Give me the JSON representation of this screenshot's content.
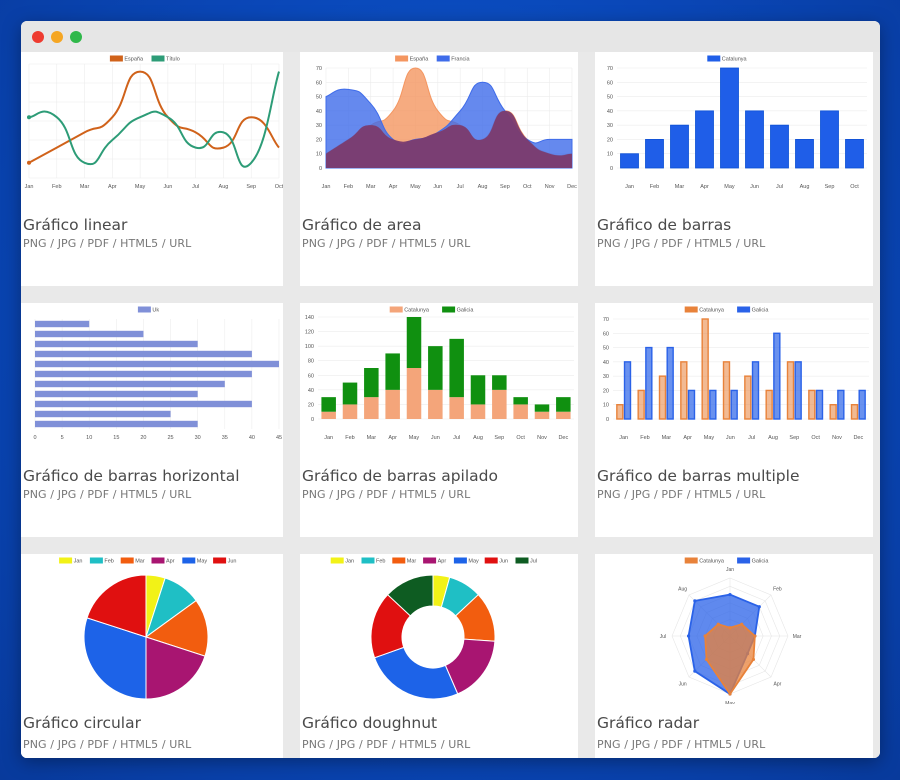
{
  "window": {
    "controls": [
      {
        "name": "close",
        "color": "#ee3b30"
      },
      {
        "name": "minimize",
        "color": "#f5a623"
      },
      {
        "name": "maximize",
        "color": "#2fb84a"
      }
    ]
  },
  "export_links": [
    "PNG",
    "JPG",
    "PDF",
    "HTML5",
    "URL"
  ],
  "cards": [
    {
      "title": "Gráfico linear"
    },
    {
      "title": "Gráfico de area"
    },
    {
      "title": "Gráfico de barras"
    },
    {
      "title": "Gráfico de barras horizontal"
    },
    {
      "title": "Gráfico de barras apilado"
    },
    {
      "title": "Gráfico de barras multiple"
    },
    {
      "title": "Gráfico circular"
    },
    {
      "title": "Gráfico doughnut"
    },
    {
      "title": "Gráfico radar"
    }
  ],
  "colors": {
    "espana": "#e2711d",
    "titulo": "#2d9c77",
    "francia": "#3a6de0",
    "catalunya": "#1f5ee8",
    "galicia": "#109010",
    "uk": "#8090d8"
  },
  "chart_data": [
    {
      "type": "line",
      "categories": [
        "Jan",
        "Feb",
        "Mar",
        "Apr",
        "May",
        "Jun",
        "Jul",
        "Aug",
        "Sep",
        "Oct"
      ],
      "series": [
        {
          "name": "España",
          "color": "#d0621a",
          "values": [
            10,
            20,
            30,
            40,
            70,
            40,
            30,
            20,
            40,
            20
          ]
        },
        {
          "name": "Título",
          "color": "#2d9c77",
          "values": [
            40,
            40,
            10,
            25,
            40,
            40,
            20,
            30,
            10,
            70
          ]
        }
      ],
      "ylim": [
        0,
        75
      ]
    },
    {
      "type": "area",
      "categories": [
        "Jan",
        "Feb",
        "Mar",
        "Apr",
        "May",
        "Jun",
        "Jul",
        "Aug",
        "Sep",
        "Oct",
        "Nov",
        "Dec"
      ],
      "series": [
        {
          "name": "España",
          "color": "#f49660",
          "values": [
            10,
            20,
            30,
            40,
            70,
            40,
            30,
            20,
            40,
            20,
            10,
            10
          ]
        },
        {
          "name": "Francia",
          "color": "#3f6cea",
          "values": [
            50,
            55,
            45,
            20,
            20,
            25,
            40,
            60,
            40,
            20,
            20,
            20
          ]
        }
      ],
      "ylim": [
        0,
        70
      ],
      "yticks": [
        0,
        10,
        20,
        30,
        40,
        50,
        60,
        70
      ]
    },
    {
      "type": "bar",
      "categories": [
        "Jan",
        "Feb",
        "Mar",
        "Apr",
        "May",
        "Jun",
        "Jul",
        "Aug",
        "Sep",
        "Oct"
      ],
      "series": [
        {
          "name": "Catalunya",
          "color": "#1f5ee8",
          "values": [
            10,
            20,
            30,
            40,
            70,
            40,
            30,
            20,
            40,
            20
          ]
        }
      ],
      "ylim": [
        0,
        70
      ],
      "yticks": [
        0,
        10,
        20,
        30,
        40,
        50,
        60,
        70
      ]
    },
    {
      "type": "bar",
      "orientation": "horizontal",
      "series": [
        {
          "name": "Uk",
          "color": "#8090d8",
          "values": [
            10,
            20,
            30,
            40,
            45,
            40,
            35,
            30,
            40,
            25,
            30
          ]
        }
      ],
      "xlim": [
        0,
        45
      ],
      "xticks": [
        0,
        5,
        10,
        15,
        20,
        25,
        30,
        35,
        40,
        45
      ]
    },
    {
      "type": "bar",
      "stacked": true,
      "categories": [
        "Jan",
        "Feb",
        "Mar",
        "Apr",
        "May",
        "Jun",
        "Jul",
        "Aug",
        "Sep",
        "Oct",
        "Nov",
        "Dec"
      ],
      "series": [
        {
          "name": "Catalunya",
          "color": "#f4a57a",
          "values": [
            10,
            20,
            30,
            40,
            70,
            40,
            30,
            20,
            40,
            20,
            10,
            10
          ]
        },
        {
          "name": "Galicia",
          "color": "#109010",
          "values": [
            20,
            30,
            40,
            50,
            70,
            60,
            80,
            40,
            20,
            10,
            10,
            20
          ]
        }
      ],
      "ylim": [
        0,
        140
      ],
      "yticks": [
        0,
        20,
        40,
        60,
        80,
        100,
        120,
        140
      ]
    },
    {
      "type": "bar",
      "categories": [
        "Jan",
        "Feb",
        "Mar",
        "Apr",
        "May",
        "Jun",
        "Jul",
        "Aug",
        "Sep",
        "Oct",
        "Nov",
        "Dec"
      ],
      "series": [
        {
          "name": "Catalunya",
          "color": "#e8823a",
          "values": [
            10,
            20,
            30,
            40,
            70,
            40,
            30,
            20,
            40,
            20,
            10,
            10
          ]
        },
        {
          "name": "Galicia",
          "color": "#2a62e8",
          "values": [
            40,
            50,
            50,
            20,
            20,
            20,
            40,
            60,
            40,
            20,
            20,
            20
          ]
        }
      ],
      "ylim": [
        0,
        70
      ],
      "yticks": [
        0,
        10,
        20,
        30,
        40,
        50,
        60,
        70
      ]
    },
    {
      "type": "pie",
      "series": [
        {
          "name": "Jan",
          "color": "#f2f217",
          "value": 5
        },
        {
          "name": "Feb",
          "color": "#1fbfc5",
          "value": 10
        },
        {
          "name": "Mar",
          "color": "#f25d0f",
          "value": 15
        },
        {
          "name": "Apr",
          "color": "#a81571",
          "value": 20
        },
        {
          "name": "May",
          "color": "#1d63e8",
          "value": 30
        },
        {
          "name": "Jun",
          "color": "#e01010",
          "value": 20
        }
      ]
    },
    {
      "type": "doughnut",
      "series": [
        {
          "name": "Jan",
          "color": "#f2f217",
          "value": 5
        },
        {
          "name": "Feb",
          "color": "#1fbfc5",
          "value": 10
        },
        {
          "name": "Mar",
          "color": "#f25d0f",
          "value": 15
        },
        {
          "name": "Apr",
          "color": "#a81571",
          "value": 20
        },
        {
          "name": "May",
          "color": "#1d63e8",
          "value": 30
        },
        {
          "name": "Jun",
          "color": "#e01010",
          "value": 20
        },
        {
          "name": "Jul",
          "color": "#0e5c22",
          "value": 15
        }
      ]
    },
    {
      "type": "radar",
      "categories": [
        "Jan",
        "Feb",
        "Mar",
        "Apr",
        "May",
        "Jun",
        "Jul",
        "Aug"
      ],
      "series": [
        {
          "name": "Catalunya",
          "color": "#e8823a",
          "values": [
            10,
            20,
            30,
            40,
            70,
            40,
            30,
            20
          ]
        },
        {
          "name": "Galicia",
          "color": "#2a62e8",
          "values": [
            50,
            50,
            30,
            30,
            70,
            60,
            50,
            60
          ]
        }
      ],
      "rlim": [
        0,
        70
      ]
    }
  ]
}
